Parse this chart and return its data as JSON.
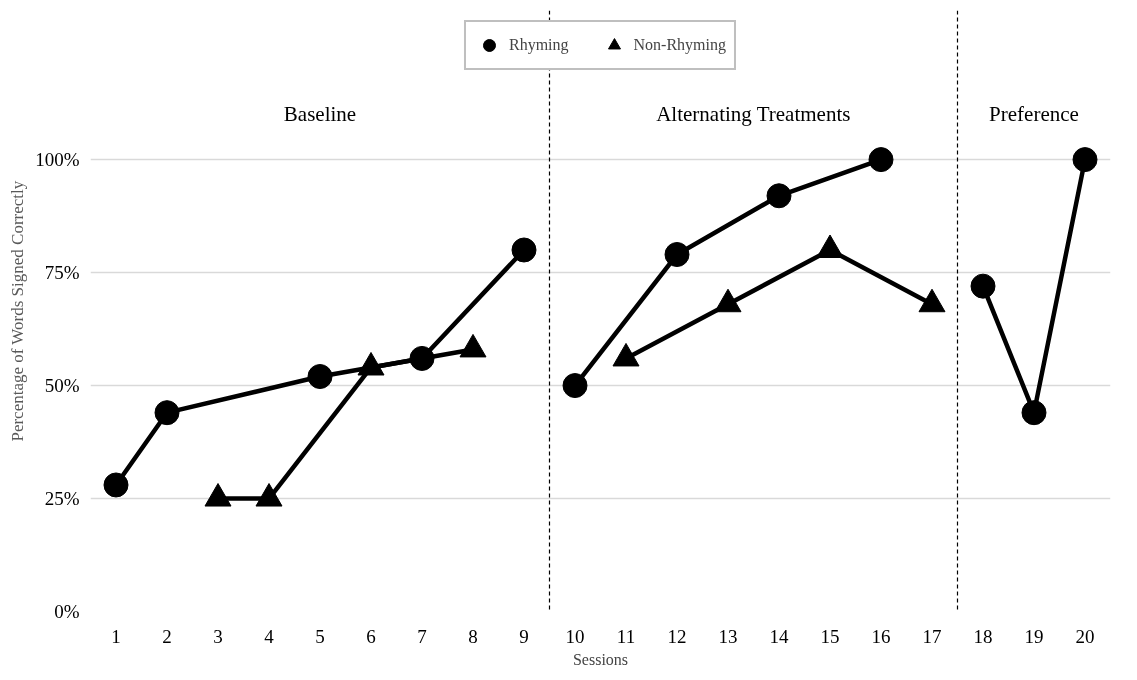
{
  "chart_data": {
    "type": "line",
    "xlabel": "Sessions",
    "ylabel": "Percentage of Words Signed Correctly",
    "series": [
      {
        "name": "Rhyming",
        "color": "#000000",
        "marker": "circle",
        "x": [
          1,
          2,
          5,
          7,
          9,
          9.5,
          10,
          12,
          14,
          16,
          17.5,
          18,
          19,
          20
        ],
        "values": [
          28,
          44,
          52,
          56,
          80,
          null,
          50,
          79,
          92,
          100,
          null,
          72,
          44,
          100
        ]
      },
      {
        "name": "Non-Rhyming",
        "color": "#000000",
        "marker": "triangle",
        "x": [
          3,
          4,
          6,
          8,
          9.5,
          11,
          13,
          15,
          17
        ],
        "values": [
          25,
          25,
          54,
          58,
          null,
          56,
          68,
          80,
          68
        ]
      }
    ],
    "xlim": [
      0.5,
      20.5
    ],
    "ylim": [
      0,
      133
    ],
    "xticks": [
      1,
      2,
      3,
      4,
      5,
      6,
      7,
      8,
      9,
      10,
      11,
      12,
      13,
      14,
      15,
      16,
      17,
      18,
      19,
      20
    ],
    "yticks": [
      {
        "value": 0,
        "label": "0%"
      },
      {
        "value": 25,
        "label": "25%"
      },
      {
        "value": 50,
        "label": "50%"
      },
      {
        "value": 75,
        "label": "75%"
      },
      {
        "value": 100,
        "label": "100%"
      }
    ],
    "grid": "y",
    "legend": "top",
    "line_style": "solid",
    "ref_lines": [
      {
        "axis": "x",
        "value": 9.5,
        "line_style": "dashed",
        "color": "#000000"
      },
      {
        "axis": "x",
        "value": 17.5,
        "line_style": "dashed",
        "color": "#000000"
      }
    ],
    "annotations": [
      "Baseline",
      "Alternating Treatments",
      "Preference"
    ]
  }
}
